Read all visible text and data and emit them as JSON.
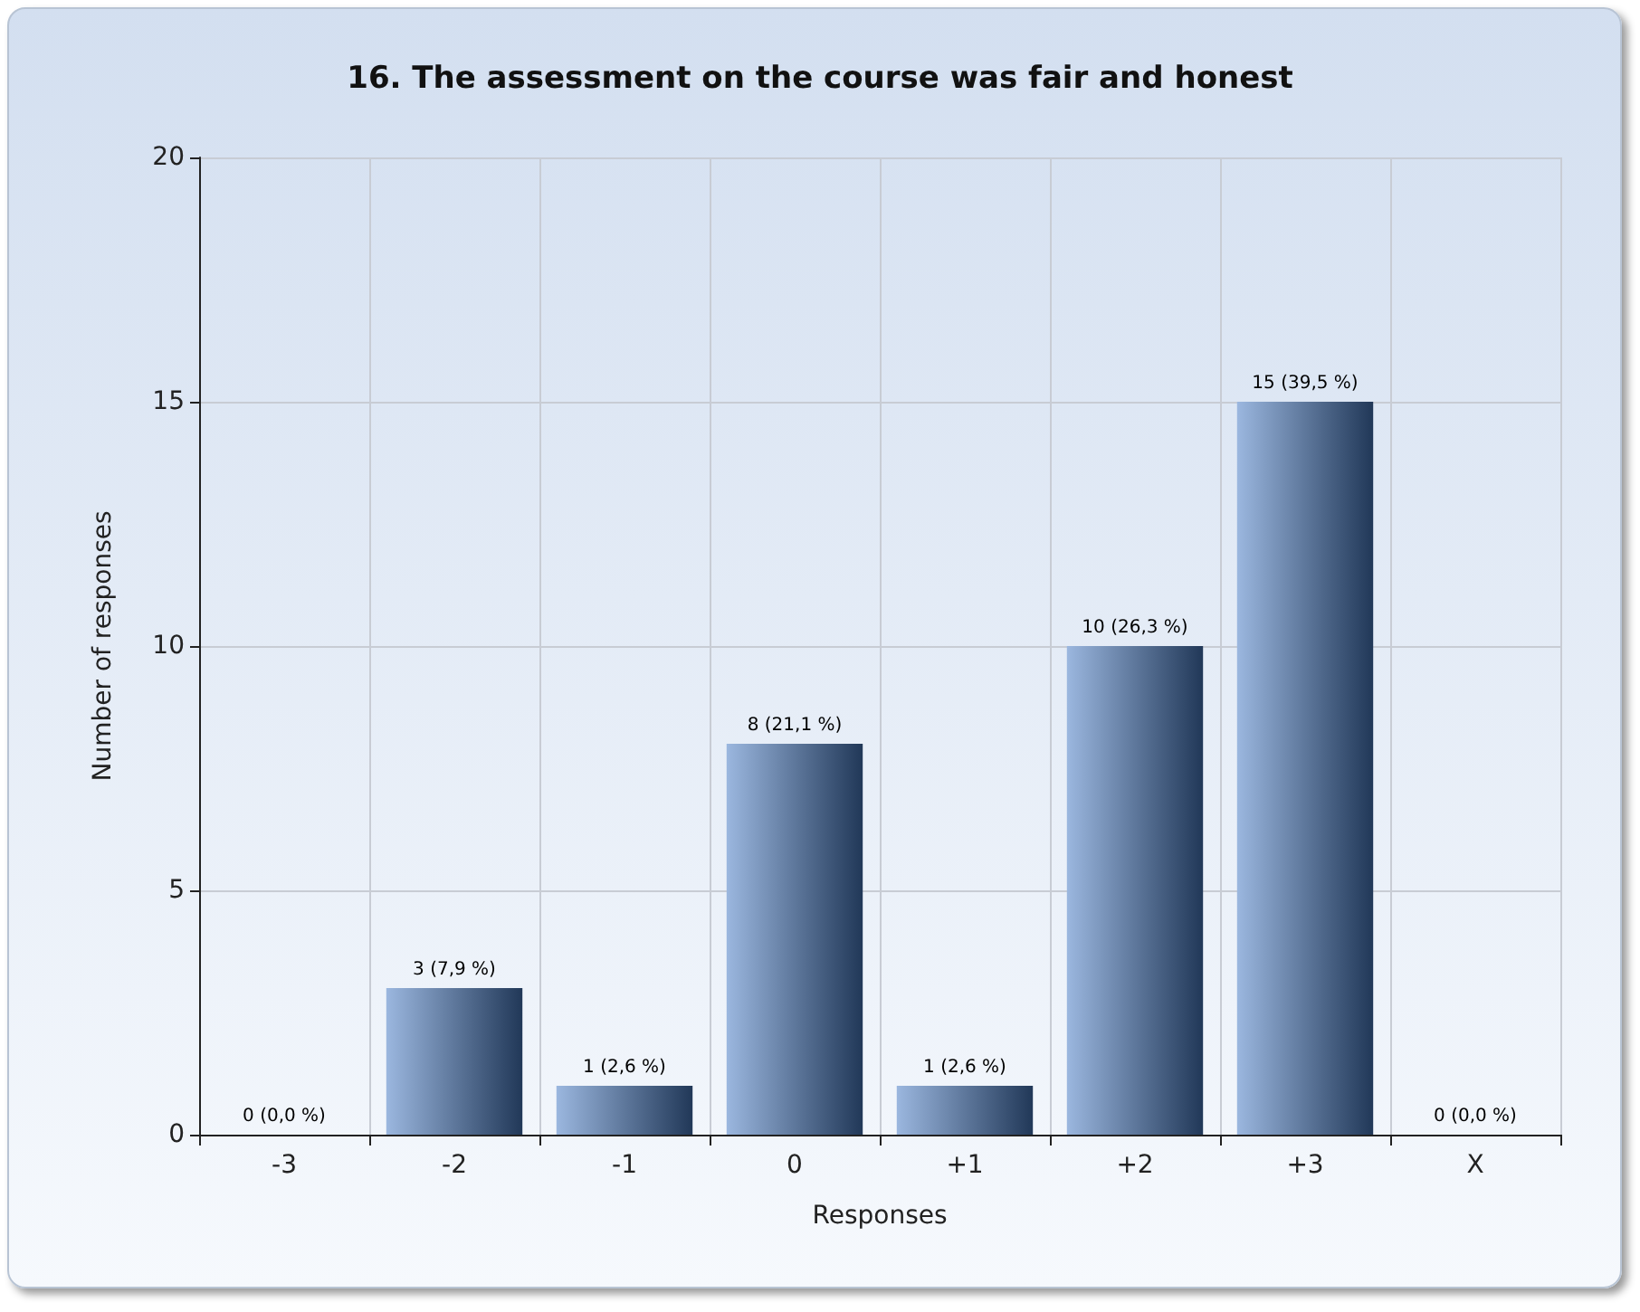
{
  "chart_data": {
    "type": "bar",
    "title": "16. The assessment on the course was fair and honest",
    "xlabel": "Responses",
    "ylabel": "Number of responses",
    "categories": [
      "-3",
      "-2",
      "-1",
      "0",
      "+1",
      "+2",
      "+3",
      "X"
    ],
    "values": [
      0,
      3,
      1,
      8,
      1,
      10,
      15,
      0
    ],
    "value_labels": [
      "0 (0,0 %)",
      "3 (7,9 %)",
      "1 (2,6 %)",
      "8 (21,1 %)",
      "1 (2,6 %)",
      "10 (26,3 %)",
      "15 (39,5 %)",
      "0 (0,0 %)"
    ],
    "color": "#4a7cc4",
    "ylim": [
      0,
      20
    ],
    "yticks": [
      0,
      5,
      10,
      15,
      20
    ],
    "grid": true
  }
}
